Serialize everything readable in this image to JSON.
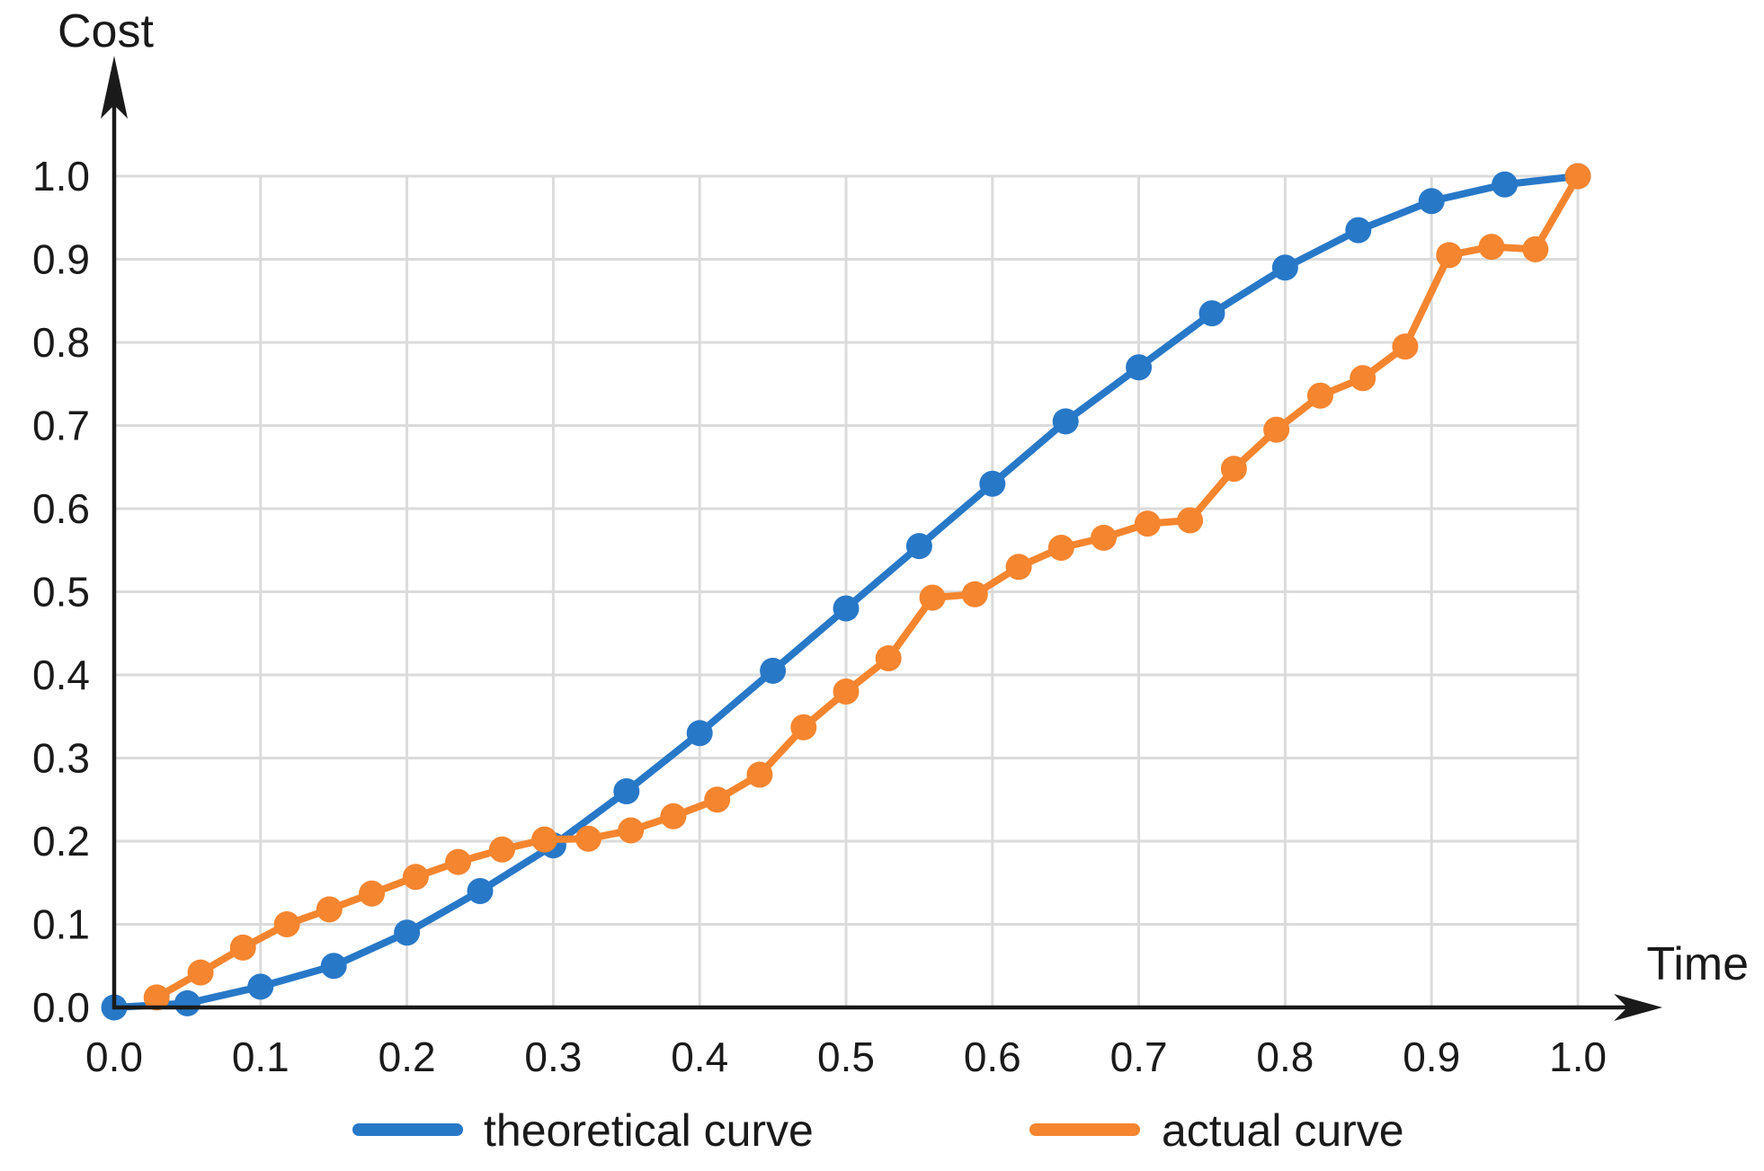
{
  "chart_data": {
    "type": "line",
    "title": "",
    "xlabel": "Time",
    "ylabel": "Cost",
    "xlim": [
      0,
      1
    ],
    "ylim": [
      0,
      1
    ],
    "grid": true,
    "legend_position": "bottom",
    "x_ticks": [
      "0.0",
      "0.1",
      "0.2",
      "0.3",
      "0.4",
      "0.5",
      "0.6",
      "0.7",
      "0.8",
      "0.9",
      "1.0"
    ],
    "y_ticks": [
      "0.0",
      "0.1",
      "0.2",
      "0.3",
      "0.4",
      "0.5",
      "0.6",
      "0.7",
      "0.8",
      "0.9",
      "1.0"
    ],
    "colors": {
      "grid": "#DBDBDB",
      "axis": "#1A1A1A",
      "background": "#FFFFFF"
    },
    "series": [
      {
        "name": "theoretical curve",
        "color": "#2878C8",
        "marker": "circle",
        "x": [
          0.0,
          0.05,
          0.1,
          0.15,
          0.2,
          0.25,
          0.3,
          0.35,
          0.4,
          0.45,
          0.5,
          0.55,
          0.6,
          0.65,
          0.7,
          0.75,
          0.8,
          0.85,
          0.9,
          0.95,
          1.0
        ],
        "y": [
          0.0,
          0.005,
          0.025,
          0.05,
          0.09,
          0.14,
          0.195,
          0.26,
          0.33,
          0.405,
          0.48,
          0.555,
          0.63,
          0.705,
          0.77,
          0.835,
          0.89,
          0.935,
          0.97,
          0.99,
          1.0
        ]
      },
      {
        "name": "actual curve",
        "color": "#F5852F",
        "marker": "circle",
        "x": [
          0.029,
          0.059,
          0.088,
          0.118,
          0.147,
          0.176,
          0.206,
          0.235,
          0.265,
          0.294,
          0.324,
          0.353,
          0.382,
          0.412,
          0.441,
          0.471,
          0.5,
          0.529,
          0.559,
          0.588,
          0.618,
          0.647,
          0.676,
          0.706,
          0.735,
          0.765,
          0.794,
          0.824,
          0.853,
          0.882,
          0.912,
          0.941,
          0.971,
          1.0
        ],
        "y": [
          0.012,
          0.042,
          0.072,
          0.1,
          0.118,
          0.137,
          0.157,
          0.175,
          0.19,
          0.202,
          0.203,
          0.213,
          0.23,
          0.25,
          0.28,
          0.337,
          0.38,
          0.42,
          0.493,
          0.497,
          0.53,
          0.553,
          0.565,
          0.582,
          0.586,
          0.648,
          0.695,
          0.736,
          0.757,
          0.795,
          0.905,
          0.915,
          0.912,
          1.0
        ]
      }
    ]
  }
}
